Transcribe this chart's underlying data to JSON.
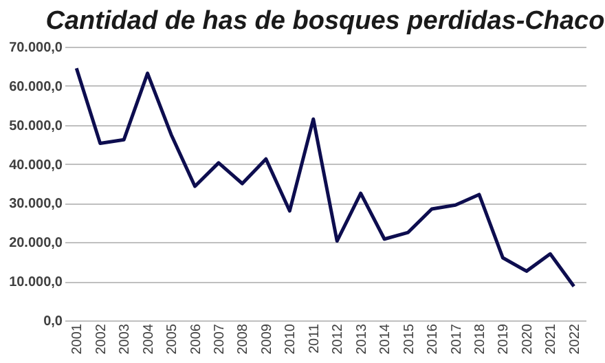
{
  "chart_data": {
    "type": "line",
    "title": "Cantidad de has  de bosques perdidas-Chaco",
    "categories": [
      "2001",
      "2002",
      "2003",
      "2004",
      "2005",
      "2006",
      "2007",
      "2008",
      "2009",
      "2010",
      "2011",
      "2012",
      "2013",
      "2014",
      "2015",
      "2016",
      "2017",
      "2018",
      "2019",
      "2020",
      "2021",
      "2022"
    ],
    "series": [
      {
        "color": "#0d0d4f",
        "values": [
          64500,
          45300,
          46200,
          63200,
          47500,
          34300,
          40300,
          35000,
          41300,
          28000,
          51500,
          20300,
          32500,
          20800,
          22500,
          28500,
          29500,
          32200,
          16000,
          12600,
          17000,
          8700
        ]
      }
    ],
    "ylim": [
      0,
      70000
    ],
    "yticks": [
      {
        "value": 0,
        "label": "0,0"
      },
      {
        "value": 10000,
        "label": "10.000,0"
      },
      {
        "value": 20000,
        "label": "20.000,0"
      },
      {
        "value": 30000,
        "label": "30.000,0"
      },
      {
        "value": 40000,
        "label": "40.000,0"
      },
      {
        "value": 50000,
        "label": "50.000,0"
      },
      {
        "value": 60000,
        "label": "60.000,0"
      },
      {
        "value": 70000,
        "label": "70.000,0"
      }
    ],
    "grid": "y",
    "legend": false,
    "marker": "none",
    "line_style": "solid"
  }
}
